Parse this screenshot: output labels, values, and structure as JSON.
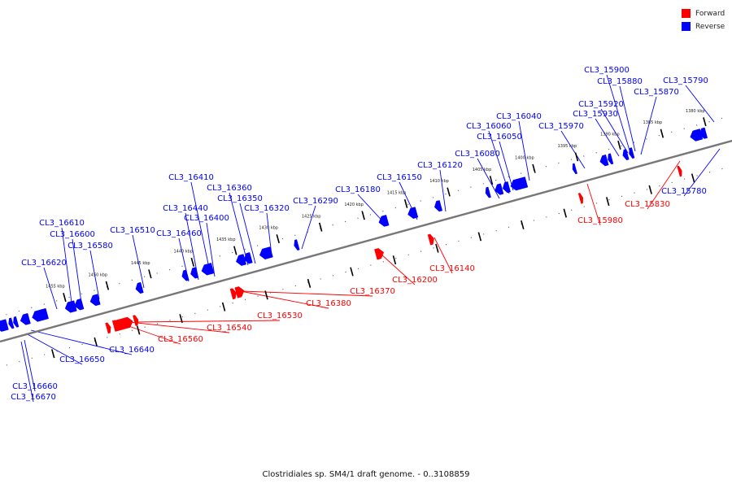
{
  "caption": "Clostridiales sp. SM4/1 draft genome. - 0..3108859",
  "legend": [
    {
      "label": "Forward",
      "color": "#ff0000"
    },
    {
      "label": "Reverse",
      "color": "#0000ff"
    }
  ],
  "colors": {
    "forward": "#ff0000",
    "reverse": "#0000ff",
    "backbone": "#777777"
  },
  "ticks": [
    "1380 kbp",
    "1385 kbp",
    "1390 kbp",
    "1395 kbp",
    "1400 kbp",
    "1405 kbp",
    "1410 kbp",
    "1415 kbp",
    "1420 kbp",
    "1425 kbp",
    "1430 kbp",
    "1435 kbp",
    "1440 kbp",
    "1445 kbp",
    "1450 kbp",
    "1455 kbp"
  ],
  "genes": [
    {
      "id": "CL3_15790",
      "strand": "reverse"
    },
    {
      "id": "CL3_15900",
      "strand": "reverse"
    },
    {
      "id": "CL3_15880",
      "strand": "reverse"
    },
    {
      "id": "CL3_15870",
      "strand": "reverse"
    },
    {
      "id": "CL3_15920",
      "strand": "reverse"
    },
    {
      "id": "CL3_15930",
      "strand": "reverse"
    },
    {
      "id": "CL3_15970",
      "strand": "reverse"
    },
    {
      "id": "CL3_16040",
      "strand": "reverse"
    },
    {
      "id": "CL3_16060",
      "strand": "reverse"
    },
    {
      "id": "CL3_16050",
      "strand": "reverse"
    },
    {
      "id": "CL3_16080",
      "strand": "reverse"
    },
    {
      "id": "CL3_16120",
      "strand": "reverse"
    },
    {
      "id": "CL3_16150",
      "strand": "reverse"
    },
    {
      "id": "CL3_16180",
      "strand": "reverse"
    },
    {
      "id": "CL3_16290",
      "strand": "reverse"
    },
    {
      "id": "CL3_16410",
      "strand": "reverse"
    },
    {
      "id": "CL3_16360",
      "strand": "reverse"
    },
    {
      "id": "CL3_16350",
      "strand": "reverse"
    },
    {
      "id": "CL3_16320",
      "strand": "reverse"
    },
    {
      "id": "CL3_16440",
      "strand": "reverse"
    },
    {
      "id": "CL3_16400",
      "strand": "reverse"
    },
    {
      "id": "CL3_16460",
      "strand": "reverse"
    },
    {
      "id": "CL3_16510",
      "strand": "reverse"
    },
    {
      "id": "CL3_16610",
      "strand": "reverse"
    },
    {
      "id": "CL3_16600",
      "strand": "reverse"
    },
    {
      "id": "CL3_16580",
      "strand": "reverse"
    },
    {
      "id": "CL3_16620",
      "strand": "reverse"
    },
    {
      "id": "CL3_15780",
      "strand": "reverse"
    },
    {
      "id": "CL3_16640",
      "strand": "reverse"
    },
    {
      "id": "CL3_16650",
      "strand": "reverse"
    },
    {
      "id": "CL3_16660",
      "strand": "reverse"
    },
    {
      "id": "CL3_16670",
      "strand": "reverse"
    },
    {
      "id": "CL3_15830",
      "strand": "forward"
    },
    {
      "id": "CL3_15980",
      "strand": "forward"
    },
    {
      "id": "CL3_16140",
      "strand": "forward"
    },
    {
      "id": "CL3_16200",
      "strand": "forward"
    },
    {
      "id": "CL3_16370",
      "strand": "forward"
    },
    {
      "id": "CL3_16380",
      "strand": "forward"
    },
    {
      "id": "CL3_16530",
      "strand": "forward"
    },
    {
      "id": "CL3_16540",
      "strand": "forward"
    },
    {
      "id": "CL3_16560",
      "strand": "forward"
    }
  ]
}
